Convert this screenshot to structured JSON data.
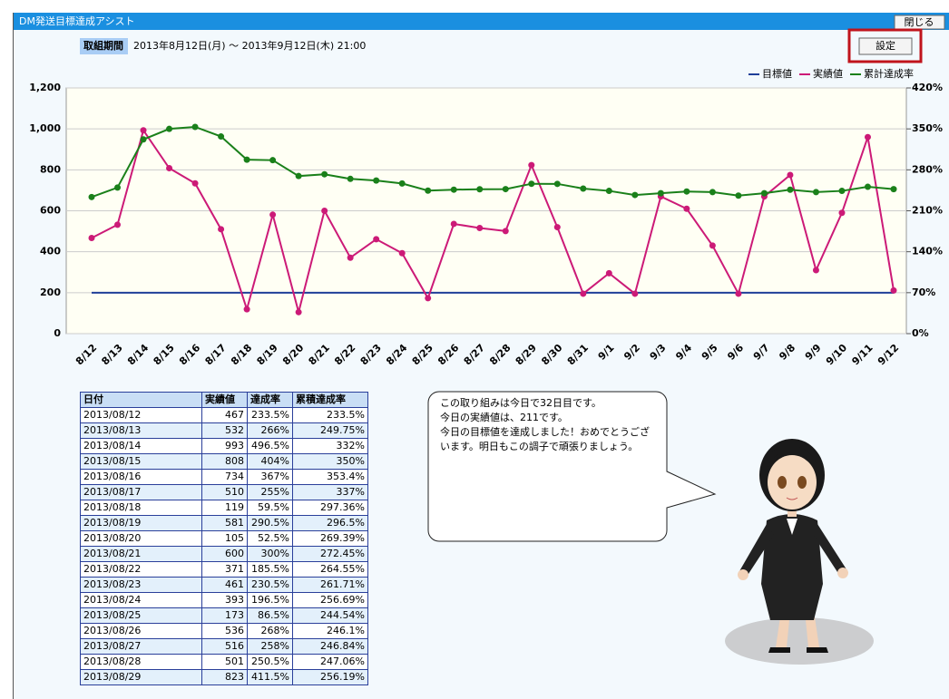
{
  "header": {
    "title": "DM発送目標達成アシスト",
    "close_button": "閉じる",
    "settings_button": "設定",
    "period_label": "取組期間",
    "period_value": "2013年8月12日(月) ～ 2013年9月12日(木) 21:00"
  },
  "chart_data": {
    "type": "line",
    "categories": [
      "8/12",
      "8/13",
      "8/14",
      "8/15",
      "8/16",
      "8/17",
      "8/18",
      "8/19",
      "8/20",
      "8/21",
      "8/22",
      "8/23",
      "8/24",
      "8/25",
      "8/26",
      "8/27",
      "8/28",
      "8/29",
      "8/30",
      "8/31",
      "9/1",
      "9/2",
      "9/3",
      "9/4",
      "9/5",
      "9/6",
      "9/7",
      "9/8",
      "9/9",
      "9/10",
      "9/11",
      "9/12"
    ],
    "ylim": [
      0,
      1200
    ],
    "yticks": [
      0,
      200,
      400,
      600,
      800,
      {
        "value": 1000,
        "label": "1,000"
      },
      {
        "value": 1200,
        "label": "1,200"
      }
    ],
    "y2lim": [
      0,
      420
    ],
    "y2ticks": [
      {
        "value": 0,
        "label": "0%"
      },
      {
        "value": 70,
        "label": "70%"
      },
      {
        "value": 140,
        "label": "140%"
      },
      {
        "value": 210,
        "label": "210%"
      },
      {
        "value": 280,
        "label": "280%"
      },
      {
        "value": 350,
        "label": "350%"
      },
      {
        "value": 420,
        "label": "420%"
      }
    ],
    "grid": true,
    "legend": "top-right",
    "series": [
      {
        "name": "目標値",
        "color": "#1f3f99",
        "values": [
          200,
          200,
          200,
          200,
          200,
          200,
          200,
          200,
          200,
          200,
          200,
          200,
          200,
          200,
          200,
          200,
          200,
          200,
          200,
          200,
          200,
          200,
          200,
          200,
          200,
          200,
          200,
          200,
          200,
          200,
          200,
          200
        ]
      },
      {
        "name": "実績値",
        "color": "#cc1a77",
        "values": [
          467,
          532,
          993,
          808,
          734,
          510,
          119,
          581,
          105,
          600,
          371,
          461,
          393,
          173,
          536,
          516,
          501,
          823,
          520,
          195,
          295,
          195,
          670,
          610,
          430,
          195,
          670,
          775,
          310,
          590,
          960,
          211
        ]
      },
      {
        "name": "累計達成率",
        "color": "#1a801a",
        "axis": "y2",
        "values": [
          233.5,
          249.75,
          332,
          350,
          353.4,
          337,
          297.36,
          296.5,
          269.39,
          272.45,
          264.55,
          261.71,
          256.69,
          244.54,
          246.1,
          246.84,
          247.06,
          256.19,
          256,
          248,
          244,
          237,
          240,
          243,
          242,
          236,
          240,
          246,
          242,
          244,
          251,
          247
        ]
      }
    ]
  },
  "table": {
    "columns": [
      "日付",
      "実績値",
      "達成率",
      "累積達成率"
    ],
    "rows": [
      [
        "2013/08/12",
        "467",
        "233.5%",
        "233.5%"
      ],
      [
        "2013/08/13",
        "532",
        "266%",
        "249.75%"
      ],
      [
        "2013/08/14",
        "993",
        "496.5%",
        "332%"
      ],
      [
        "2013/08/15",
        "808",
        "404%",
        "350%"
      ],
      [
        "2013/08/16",
        "734",
        "367%",
        "353.4%"
      ],
      [
        "2013/08/17",
        "510",
        "255%",
        "337%"
      ],
      [
        "2013/08/18",
        "119",
        "59.5%",
        "297.36%"
      ],
      [
        "2013/08/19",
        "581",
        "290.5%",
        "296.5%"
      ],
      [
        "2013/08/20",
        "105",
        "52.5%",
        "269.39%"
      ],
      [
        "2013/08/21",
        "600",
        "300%",
        "272.45%"
      ],
      [
        "2013/08/22",
        "371",
        "185.5%",
        "264.55%"
      ],
      [
        "2013/08/23",
        "461",
        "230.5%",
        "261.71%"
      ],
      [
        "2013/08/24",
        "393",
        "196.5%",
        "256.69%"
      ],
      [
        "2013/08/25",
        "173",
        "86.5%",
        "244.54%"
      ],
      [
        "2013/08/26",
        "536",
        "268%",
        "246.1%"
      ],
      [
        "2013/08/27",
        "516",
        "258%",
        "246.84%"
      ],
      [
        "2013/08/28",
        "501",
        "250.5%",
        "247.06%"
      ],
      [
        "2013/08/29",
        "823",
        "411.5%",
        "256.19%"
      ]
    ]
  },
  "message": {
    "lines": [
      "この取り組みは今日で32日目です。",
      "今日の実績値は、211です。",
      "今日の目標値を達成しました！おめでとうござ",
      "います。明日もこの調子で頑張りましょう。"
    ]
  }
}
